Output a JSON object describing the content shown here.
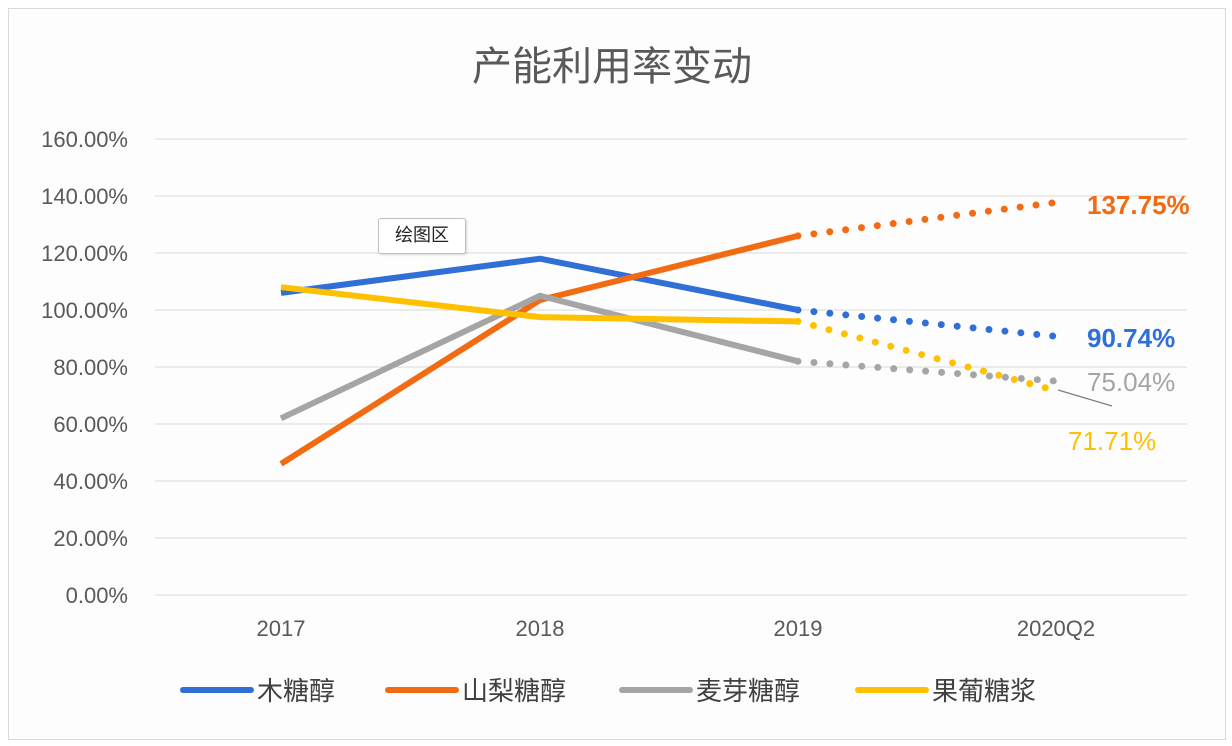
{
  "chart_data": {
    "type": "line",
    "title": "产能利用率变动",
    "categories": [
      "2017",
      "2018",
      "2019",
      "2020Q2"
    ],
    "ylim": [
      0,
      1.6
    ],
    "yticks": [
      "0.00%",
      "20.00%",
      "40.00%",
      "60.00%",
      "80.00%",
      "100.00%",
      "120.00%",
      "140.00%",
      "160.00%"
    ],
    "grid": true,
    "legend_position": "bottom",
    "projected_segment": "2019-2020Q2 dotted",
    "series": [
      {
        "name": "木糖醇",
        "color": "#2f6fd6",
        "values": [
          1.06,
          1.18,
          1.0,
          0.9074
        ],
        "end_label": "90.74%"
      },
      {
        "name": "山梨糖醇",
        "color": "#f26b12",
        "values": [
          0.46,
          1.035,
          1.26,
          1.3775
        ],
        "end_label": "137.75%"
      },
      {
        "name": "麦芽糖醇",
        "color": "#a5a5a5",
        "values": [
          0.62,
          1.05,
          0.82,
          0.7504
        ],
        "end_label": "75.04%"
      },
      {
        "name": "果葡糖浆",
        "color": "#ffc000",
        "values": [
          1.08,
          0.975,
          0.96,
          0.7171
        ],
        "end_label": "71.71%"
      }
    ]
  },
  "tooltip": "绘图区"
}
